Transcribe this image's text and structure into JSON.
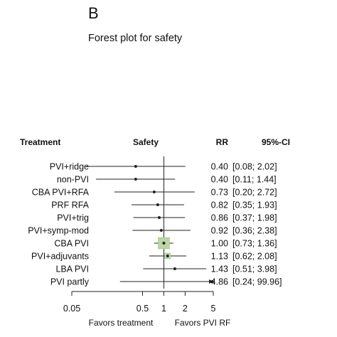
{
  "panel_label": "B",
  "subtitle": "Forest plot for safety",
  "chart_data": {
    "type": "forest",
    "title": "Forest plot for safety",
    "headers": {
      "treatment": "Treatment",
      "effect": "Safety",
      "rr": "RR",
      "ci": "95%-CI"
    },
    "x_scale": "log",
    "xlim": [
      0.05,
      5
    ],
    "reference": 1,
    "x_ticks": [
      {
        "value": 0.05,
        "label": "0.05"
      },
      {
        "value": 0.5,
        "label": "0.5"
      },
      {
        "value": 1,
        "label": "1"
      },
      {
        "value": 2,
        "label": "2"
      },
      {
        "value": 5,
        "label": "5"
      }
    ],
    "favors_left": "Favors treatment",
    "favors_right": "Favors PVI RF",
    "rows": [
      {
        "treatment": "PVI+ridge",
        "rr": 0.4,
        "lo": 0.08,
        "hi": 2.02,
        "rr_text": "0.40",
        "ci_text": "[0.08;  2.02]",
        "weight": 0.0
      },
      {
        "treatment": "non-PVI",
        "rr": 0.4,
        "lo": 0.11,
        "hi": 1.44,
        "rr_text": "0.40",
        "ci_text": "[0.11;  1.44]",
        "weight": 0.0
      },
      {
        "treatment": "CBA PVI+RFA",
        "rr": 0.73,
        "lo": 0.2,
        "hi": 2.72,
        "rr_text": "0.73",
        "ci_text": "[0.20;  2.72]",
        "weight": 0.0
      },
      {
        "treatment": "PRF RFA",
        "rr": 0.82,
        "lo": 0.35,
        "hi": 1.93,
        "rr_text": "0.82",
        "ci_text": "[0.35;  1.93]",
        "weight": 0.0
      },
      {
        "treatment": "PVI+trig",
        "rr": 0.86,
        "lo": 0.37,
        "hi": 1.98,
        "rr_text": "0.86",
        "ci_text": "[0.37;  1.98]",
        "weight": 0.0
      },
      {
        "treatment": "PVI+symp-mod",
        "rr": 0.92,
        "lo": 0.36,
        "hi": 2.38,
        "rr_text": "0.92",
        "ci_text": "[0.36;  2.38]",
        "weight": 0.0
      },
      {
        "treatment": "CBA PVI",
        "rr": 1.0,
        "lo": 0.73,
        "hi": 1.36,
        "rr_text": "1.00",
        "ci_text": "[0.73;  1.36]",
        "weight": 1.0
      },
      {
        "treatment": "PVI+adjuvants",
        "rr": 1.13,
        "lo": 0.62,
        "hi": 2.08,
        "rr_text": "1.13",
        "ci_text": "[0.62;  2.08]",
        "weight": 0.35
      },
      {
        "treatment": "LBA PVI",
        "rr": 1.43,
        "lo": 0.51,
        "hi": 3.98,
        "rr_text": "1.43",
        "ci_text": "[0.51;  3.98]",
        "weight": 0.0
      },
      {
        "treatment": "PVI partly",
        "rr": 4.86,
        "lo": 0.24,
        "hi": 99.96,
        "rr_text": "4.86",
        "ci_text": "[0.24; 99.96]",
        "weight": 0.0
      }
    ],
    "colors": {
      "box": "#b9d6a3",
      "box_stroke": "#9cc07f",
      "line": "#222222",
      "dot": "#222222"
    }
  }
}
